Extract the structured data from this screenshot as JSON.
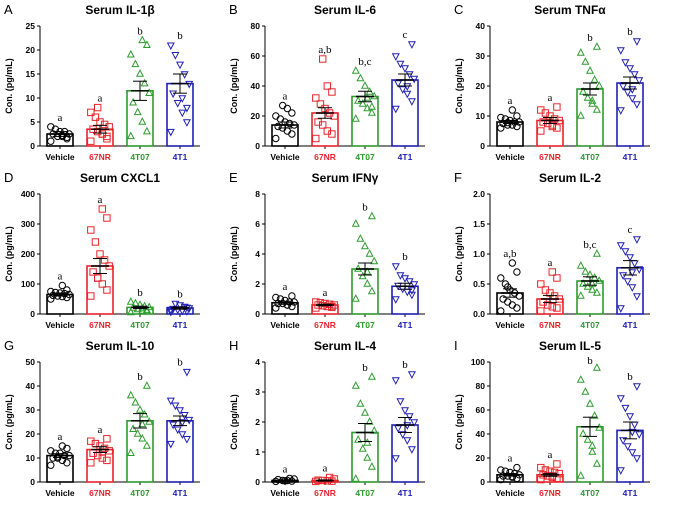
{
  "colors": {
    "Vehicle": "#000000",
    "67NR": "#e8242a",
    "4T07": "#2e9b2e",
    "4T1": "#1f1fb4"
  },
  "markers": {
    "Vehicle": "circle",
    "67NR": "square",
    "4T07": "triangle-up",
    "4T1": "triangle-down"
  },
  "chart_data": [
    {
      "panel": "A",
      "type": "bar",
      "title": "Serum IL-1β",
      "ylabel": "Con. (pg/mL)",
      "categories": [
        "Vehicle",
        "67NR",
        "4T07",
        "4T1"
      ],
      "ylim": [
        0,
        25
      ],
      "yticks": [
        "0",
        "5",
        "10",
        "15",
        "20",
        "25"
      ],
      "values": [
        2.5,
        3.5,
        11.5,
        13
      ],
      "sem": [
        0.5,
        0.8,
        2,
        2
      ],
      "letters": [
        "a",
        "a",
        "b",
        "b"
      ],
      "points": [
        [
          1,
          1.5,
          2,
          2,
          2.5,
          2.5,
          3,
          3,
          3.5,
          4,
          1.8,
          2.2
        ],
        [
          1,
          2,
          2.5,
          3,
          3.5,
          4,
          4.5,
          5,
          6,
          7,
          1.5,
          2.5,
          8
        ],
        [
          2,
          3,
          5,
          7,
          9,
          11,
          13,
          15,
          17,
          19,
          21,
          22
        ],
        [
          3,
          5,
          7,
          9,
          11,
          13,
          15,
          17,
          19,
          21,
          8,
          10
        ]
      ]
    },
    {
      "panel": "B",
      "type": "bar",
      "title": "Serum IL-6",
      "ylabel": "Con. (pg/mL)",
      "categories": [
        "Vehicle",
        "67NR",
        "4T07",
        "4T1"
      ],
      "ylim": [
        0,
        80
      ],
      "yticks": [
        "0",
        "20",
        "40",
        "60",
        "80"
      ],
      "values": [
        14,
        22,
        33,
        44
      ],
      "sem": [
        2,
        3.5,
        3.5,
        4
      ],
      "letters": [
        "a",
        "a,b",
        "b,c",
        "c"
      ],
      "points": [
        [
          5,
          8,
          10,
          12,
          13,
          14,
          15,
          16,
          18,
          20,
          22,
          25,
          27
        ],
        [
          5,
          8,
          10,
          14,
          16,
          20,
          22,
          25,
          28,
          32,
          36,
          40,
          58
        ],
        [
          18,
          22,
          25,
          28,
          30,
          33,
          36,
          40,
          45,
          50,
          26,
          32
        ],
        [
          25,
          30,
          35,
          38,
          42,
          45,
          48,
          52,
          55,
          60,
          68,
          40
        ]
      ]
    },
    {
      "panel": "C",
      "type": "bar",
      "title": "Serum TNFα",
      "ylabel": "Con. (pg/mL)",
      "categories": [
        "Vehicle",
        "67NR",
        "4T07",
        "4T1"
      ],
      "ylim": [
        0,
        40
      ],
      "yticks": [
        "0",
        "10",
        "20",
        "30",
        "40"
      ],
      "values": [
        8,
        8.5,
        19,
        21
      ],
      "sem": [
        0.5,
        1,
        2,
        2
      ],
      "letters": [
        "a",
        "a",
        "b",
        "b"
      ],
      "points": [
        [
          6,
          6.5,
          7,
          7,
          7.5,
          8,
          8,
          8.5,
          9,
          9.5,
          10,
          12,
          7.8
        ],
        [
          5,
          6,
          7,
          7.5,
          8,
          8.5,
          9,
          10,
          11,
          12,
          13,
          6.5
        ],
        [
          10,
          12,
          14,
          16,
          18,
          20,
          22,
          25,
          28,
          31,
          33,
          15
        ],
        [
          12,
          14,
          16,
          18,
          20,
          22,
          24,
          26,
          28,
          32,
          35,
          19
        ]
      ]
    },
    {
      "panel": "D",
      "type": "bar",
      "title": "Serum CXCL1",
      "ylabel": "Con. (pg/mL)",
      "categories": [
        "Vehicle",
        "67NR",
        "4T07",
        "4T1"
      ],
      "ylim": [
        0,
        400
      ],
      "yticks": [
        "0",
        "100",
        "200",
        "300",
        "400"
      ],
      "values": [
        65,
        160,
        22,
        20
      ],
      "sem": [
        5,
        25,
        4,
        4
      ],
      "letters": [
        "a",
        "a",
        "b",
        "b"
      ],
      "points": [
        [
          50,
          55,
          58,
          60,
          62,
          65,
          68,
          70,
          72,
          75,
          80,
          95
        ],
        [
          60,
          80,
          100,
          120,
          140,
          160,
          180,
          200,
          240,
          280,
          320,
          350,
          120
        ],
        [
          5,
          8,
          10,
          15,
          20,
          22,
          25,
          30,
          35,
          40,
          12,
          18
        ],
        [
          8,
          10,
          12,
          15,
          18,
          20,
          25,
          30,
          35,
          15,
          22
        ]
      ]
    },
    {
      "panel": "E",
      "type": "bar",
      "title": "Serum IFNγ",
      "ylabel": "Con. (pg/mL)",
      "categories": [
        "Vehicle",
        "67NR",
        "4T07",
        "4T1"
      ],
      "ylim": [
        0,
        8
      ],
      "yticks": [
        "0",
        "2",
        "4",
        "6",
        "8"
      ],
      "values": [
        0.75,
        0.6,
        3.0,
        1.85
      ],
      "sem": [
        0.1,
        0.05,
        0.4,
        0.2
      ],
      "letters": [
        "a",
        "a",
        "b",
        "b"
      ],
      "points": [
        [
          0.4,
          0.5,
          0.6,
          0.7,
          0.7,
          0.8,
          0.8,
          0.9,
          1,
          1.1,
          1.2,
          0.6
        ],
        [
          0.4,
          0.45,
          0.5,
          0.55,
          0.6,
          0.6,
          0.65,
          0.7,
          0.75,
          0.8,
          0.5
        ],
        [
          1,
          1.5,
          2,
          2.5,
          3,
          3.5,
          4,
          4.5,
          5,
          6,
          6.5,
          2.8
        ],
        [
          1,
          1.3,
          1.5,
          1.7,
          1.9,
          2,
          2.2,
          2.4,
          2.6,
          3.2,
          1.6
        ]
      ]
    },
    {
      "panel": "F",
      "type": "bar",
      "title": "Serum IL-2",
      "ylabel": "Con. (pg/mL)",
      "categories": [
        "Vehicle",
        "67NR",
        "4T07",
        "4T1"
      ],
      "ylim": [
        0,
        2.0
      ],
      "yticks": [
        "0.0",
        "0.5",
        "1.0",
        "1.5",
        "2.0"
      ],
      "values": [
        0.35,
        0.25,
        0.55,
        0.77
      ],
      "sem": [
        0.07,
        0.06,
        0.07,
        0.12
      ],
      "letters": [
        "a,b",
        "a",
        "b,c",
        "c"
      ],
      "points": [
        [
          0.05,
          0.1,
          0.15,
          0.2,
          0.25,
          0.3,
          0.35,
          0.4,
          0.5,
          0.6,
          0.7,
          0.85,
          0.45
        ],
        [
          0.05,
          0.1,
          0.12,
          0.15,
          0.2,
          0.25,
          0.3,
          0.35,
          0.4,
          0.5,
          0.6,
          0.7
        ],
        [
          0.3,
          0.35,
          0.4,
          0.45,
          0.5,
          0.55,
          0.6,
          0.65,
          0.7,
          0.8,
          1.0,
          0.5
        ],
        [
          0.1,
          0.3,
          0.45,
          0.55,
          0.65,
          0.75,
          0.85,
          0.95,
          1.05,
          1.15,
          1.25,
          0.7
        ]
      ]
    },
    {
      "panel": "G",
      "type": "bar",
      "title": "Serum IL-10",
      "ylabel": "Con. (pg/mL)",
      "categories": [
        "Vehicle",
        "67NR",
        "4T07",
        "4T1"
      ],
      "ylim": [
        0,
        50
      ],
      "yticks": [
        "0",
        "10",
        "20",
        "30",
        "40",
        "50"
      ],
      "values": [
        11,
        13.5,
        25.5,
        25.5
      ],
      "sem": [
        0.8,
        1.2,
        3,
        2
      ],
      "letters": [
        "a",
        "a",
        "b",
        "b"
      ],
      "points": [
        [
          7,
          8,
          9,
          10,
          10,
          11,
          11,
          12,
          12,
          13,
          14,
          15,
          10.5
        ],
        [
          8,
          9,
          10,
          11,
          12,
          13,
          14,
          15,
          16,
          17,
          18,
          12.5
        ],
        [
          12,
          15,
          18,
          20,
          22,
          25,
          28,
          30,
          33,
          36,
          40,
          24
        ],
        [
          16,
          18,
          20,
          22,
          24,
          26,
          28,
          30,
          32,
          34,
          46,
          25
        ]
      ]
    },
    {
      "panel": "H",
      "type": "bar",
      "title": "Serum IL-4",
      "ylabel": "Con. (pg/mL)",
      "categories": [
        "Vehicle",
        "67NR",
        "4T07",
        "4T1"
      ],
      "ylim": [
        0,
        4
      ],
      "yticks": [
        "0",
        "1",
        "2",
        "3",
        "4"
      ],
      "values": [
        0.05,
        0.05,
        1.65,
        1.9
      ],
      "sem": [
        0.02,
        0.02,
        0.3,
        0.25
      ],
      "letters": [
        "a",
        "a",
        "b",
        "b"
      ],
      "points": [
        [
          0.02,
          0.03,
          0.05,
          0.05,
          0.08,
          0.1,
          0.12,
          0.04
        ],
        [
          0.02,
          0.03,
          0.04,
          0.05,
          0.06,
          0.1,
          0.15
        ],
        [
          0.1,
          0.5,
          0.8,
          1.1,
          1.4,
          1.7,
          2,
          2.3,
          2.6,
          3.2,
          3.5,
          1.3
        ],
        [
          0.8,
          1.1,
          1.4,
          1.6,
          1.8,
          2,
          2.2,
          2.4,
          2.7,
          3.4,
          3.6,
          1.9
        ]
      ]
    },
    {
      "panel": "I",
      "type": "bar",
      "title": "Serum IL-5",
      "ylabel": "Con. (pg/mL)",
      "categories": [
        "Vehicle",
        "67NR",
        "4T07",
        "4T1"
      ],
      "ylim": [
        0,
        100
      ],
      "yticks": [
        "0",
        "20",
        "40",
        "60",
        "80",
        "100"
      ],
      "values": [
        6,
        6,
        46,
        43
      ],
      "sem": [
        1,
        1.2,
        8,
        7
      ],
      "letters": [
        "a",
        "a",
        "b",
        "b"
      ],
      "points": [
        [
          2,
          3,
          4,
          5,
          5,
          6,
          7,
          8,
          9,
          10,
          12,
          4.5
        ],
        [
          2,
          3,
          4,
          5,
          6,
          7,
          8,
          9,
          10,
          12,
          15,
          5
        ],
        [
          5,
          15,
          25,
          35,
          40,
          45,
          55,
          65,
          75,
          85,
          95,
          30
        ],
        [
          10,
          20,
          25,
          30,
          35,
          40,
          48,
          55,
          62,
          70,
          80,
          42
        ]
      ]
    }
  ]
}
